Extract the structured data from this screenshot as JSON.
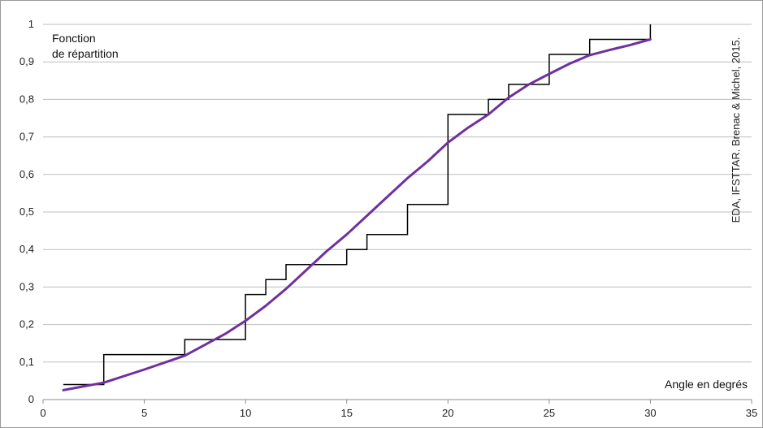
{
  "chart_data": {
    "type": "line",
    "ylabel_lines": [
      "Fonction",
      "de répartition"
    ],
    "xlabel": "Angle en degrés",
    "credit": "EDA, IFSTTAR. Brenac & Michel, 2015.",
    "xlim": [
      0,
      35
    ],
    "ylim": [
      0,
      1
    ],
    "xticks": [
      0,
      5,
      10,
      15,
      20,
      25,
      30,
      35
    ],
    "yticks": [
      "0",
      "0,1",
      "0,2",
      "0,3",
      "0,4",
      "0,5",
      "0,6",
      "0,7",
      "0,8",
      "0,9",
      "1"
    ],
    "grid": "horizontal",
    "series": [
      {
        "kind": "step",
        "color": "#000000",
        "points": [
          [
            1,
            0.04
          ],
          [
            3,
            0.04
          ],
          [
            3,
            0.12
          ],
          [
            7,
            0.12
          ],
          [
            7,
            0.16
          ],
          [
            10,
            0.16
          ],
          [
            10,
            0.28
          ],
          [
            11,
            0.28
          ],
          [
            11,
            0.32
          ],
          [
            12,
            0.32
          ],
          [
            12,
            0.36
          ],
          [
            15,
            0.36
          ],
          [
            15,
            0.4
          ],
          [
            16,
            0.4
          ],
          [
            16,
            0.44
          ],
          [
            18,
            0.44
          ],
          [
            18,
            0.52
          ],
          [
            20,
            0.52
          ],
          [
            20,
            0.76
          ],
          [
            22,
            0.76
          ],
          [
            22,
            0.8
          ],
          [
            23,
            0.8
          ],
          [
            23,
            0.84
          ],
          [
            25,
            0.84
          ],
          [
            25,
            0.92
          ],
          [
            27,
            0.92
          ],
          [
            27,
            0.96
          ],
          [
            30,
            0.96
          ],
          [
            30,
            1.0
          ]
        ]
      },
      {
        "kind": "smooth",
        "color": "#7030A0",
        "points": [
          [
            1,
            0.025
          ],
          [
            3,
            0.045
          ],
          [
            5,
            0.08
          ],
          [
            7,
            0.117
          ],
          [
            9,
            0.175
          ],
          [
            10,
            0.21
          ],
          [
            11,
            0.25
          ],
          [
            12,
            0.295
          ],
          [
            13,
            0.345
          ],
          [
            14,
            0.395
          ],
          [
            15,
            0.44
          ],
          [
            16,
            0.49
          ],
          [
            17,
            0.54
          ],
          [
            18,
            0.59
          ],
          [
            19,
            0.635
          ],
          [
            20,
            0.685
          ],
          [
            21,
            0.725
          ],
          [
            22,
            0.76
          ],
          [
            23,
            0.805
          ],
          [
            24,
            0.84
          ],
          [
            25,
            0.868
          ],
          [
            26,
            0.895
          ],
          [
            27,
            0.918
          ],
          [
            28,
            0.932
          ],
          [
            29,
            0.945
          ],
          [
            30,
            0.96
          ]
        ]
      }
    ]
  }
}
